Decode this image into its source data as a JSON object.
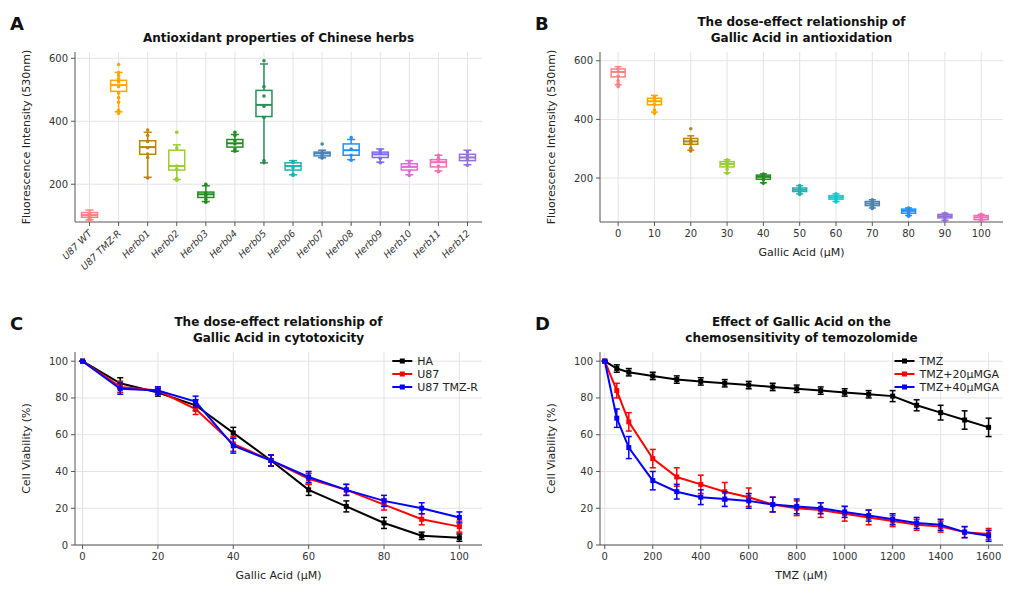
{
  "chart_data": [
    {
      "type": "box",
      "title": "Antioxidant properties of Chinese herbs",
      "annotations": [
        "A"
      ],
      "ylabel": "Fluorescence Intensity (530nm)",
      "categories": [
        "U87 WT",
        "U87 TMZ-R",
        "Herb01",
        "Herb02",
        "Herb03",
        "Herb04",
        "Herb05",
        "Herb06",
        "Herb07",
        "Herb08",
        "Herb09",
        "Herb10",
        "Herb11",
        "Herb12"
      ],
      "colors": [
        "#FF8080",
        "#FFA500",
        "#B8860B",
        "#9ACD32",
        "#228B22",
        "#228B22",
        "#2E8B57",
        "#20B2AA",
        "#4682B4",
        "#1E90FF",
        "#7B68EE",
        "#DA70D6",
        "#FF69B4",
        "#9370DB"
      ],
      "boxes": [
        {
          "q1": 95,
          "med": 102,
          "q3": 110,
          "whislo": 87,
          "whishi": 118,
          "fliers": [
            85,
            87,
            88,
            90,
            92,
            95,
            98,
            100,
            102,
            105,
            108
          ]
        },
        {
          "q1": 495,
          "med": 515,
          "q3": 530,
          "whislo": 430,
          "whishi": 555,
          "fliers": [
            425,
            435,
            460,
            475,
            490,
            510,
            525,
            535,
            545,
            555,
            580
          ]
        },
        {
          "q1": 295,
          "med": 318,
          "q3": 338,
          "whislo": 222,
          "whishi": 365,
          "fliers": [
            220,
            285,
            296,
            316,
            336,
            355,
            372
          ]
        },
        {
          "q1": 245,
          "med": 258,
          "q3": 308,
          "whislo": 215,
          "whishi": 325,
          "fliers": [
            213,
            218,
            248,
            258,
            315,
            365
          ]
        },
        {
          "q1": 158,
          "med": 168,
          "q3": 175,
          "whislo": 145,
          "whishi": 195,
          "fliers": [
            143,
            152,
            163,
            172,
            200
          ]
        },
        {
          "q1": 318,
          "med": 330,
          "q3": 342,
          "whislo": 305,
          "whishi": 358,
          "fliers": [
            305,
            312,
            328,
            338,
            355,
            365
          ]
        },
        {
          "q1": 415,
          "med": 452,
          "q3": 498,
          "whislo": 268,
          "whishi": 582,
          "fliers": [
            268,
            275,
            412,
            448,
            480,
            510,
            592
          ]
        },
        {
          "q1": 245,
          "med": 258,
          "q3": 268,
          "whislo": 230,
          "whishi": 275,
          "fliers": [
            228,
            232,
            252,
            268,
            272
          ]
        },
        {
          "q1": 290,
          "med": 298,
          "q3": 302,
          "whislo": 284,
          "whishi": 308,
          "fliers": [
            283,
            292,
            300,
            328
          ]
        },
        {
          "q1": 292,
          "med": 308,
          "q3": 328,
          "whislo": 278,
          "whishi": 342,
          "fliers": [
            276,
            292,
            312,
            348
          ]
        },
        {
          "q1": 285,
          "med": 295,
          "q3": 302,
          "whislo": 270,
          "whishi": 312,
          "fliers": [
            268,
            282,
            298,
            308
          ]
        },
        {
          "q1": 245,
          "med": 255,
          "q3": 265,
          "whislo": 230,
          "whishi": 275,
          "fliers": [
            228,
            242,
            258,
            272
          ]
        },
        {
          "q1": 255,
          "med": 270,
          "q3": 278,
          "whislo": 242,
          "whishi": 292,
          "fliers": [
            240,
            258,
            272,
            282,
            292
          ]
        },
        {
          "q1": 275,
          "med": 285,
          "q3": 295,
          "whislo": 262,
          "whishi": 308,
          "fliers": [
            260,
            278,
            290,
            302
          ]
        }
      ],
      "ylim": [
        80,
        620
      ],
      "yticks": [
        200,
        400,
        600
      ],
      "grid": true
    },
    {
      "type": "box",
      "title": "The dose-effect relationship of\nGallic Acid in antioxidation",
      "annotations": [
        "B"
      ],
      "ylabel": "Fluorescence Intensity (530nm)",
      "xlabel": "Gallic Acid (μM)",
      "x": [
        0,
        10,
        20,
        30,
        40,
        50,
        60,
        70,
        80,
        90,
        100
      ],
      "colors": [
        "#FF8080",
        "#FFA500",
        "#B8860B",
        "#9ACD32",
        "#228B22",
        "#20B2AA",
        "#00CED1",
        "#4682B4",
        "#1E90FF",
        "#9370DB",
        "#FF69B4"
      ],
      "boxes": [
        {
          "q1": 545,
          "med": 562,
          "q3": 572,
          "whislo": 518,
          "whishi": 580,
          "fliers": [
            512,
            522,
            532,
            548,
            562,
            572
          ]
        },
        {
          "q1": 450,
          "med": 462,
          "q3": 472,
          "whislo": 425,
          "whishi": 482,
          "fliers": [
            420,
            432,
            452,
            468,
            478
          ]
        },
        {
          "q1": 315,
          "med": 325,
          "q3": 335,
          "whislo": 295,
          "whishi": 344,
          "fliers": [
            292,
            302,
            318,
            328,
            368
          ]
        },
        {
          "q1": 238,
          "med": 248,
          "q3": 256,
          "whislo": 218,
          "whishi": 262,
          "fliers": [
            216,
            230,
            242,
            254,
            262
          ]
        },
        {
          "q1": 196,
          "med": 204,
          "q3": 210,
          "whislo": 184,
          "whishi": 214,
          "fliers": [
            182,
            194,
            202,
            208,
            214
          ]
        },
        {
          "q1": 154,
          "med": 160,
          "q3": 166,
          "whislo": 146,
          "whishi": 174,
          "fliers": [
            144,
            150,
            158,
            166,
            174
          ]
        },
        {
          "q1": 128,
          "med": 134,
          "q3": 140,
          "whislo": 120,
          "whishi": 146,
          "fliers": [
            118,
            126,
            132,
            138,
            146
          ]
        },
        {
          "q1": 106,
          "med": 113,
          "q3": 120,
          "whislo": 98,
          "whishi": 126,
          "fliers": [
            96,
            103,
            110,
            118,
            126
          ]
        },
        {
          "q1": 80,
          "med": 88,
          "q3": 94,
          "whislo": 72,
          "whishi": 98,
          "fliers": [
            70,
            76,
            84,
            90,
            98
          ]
        },
        {
          "q1": 64,
          "med": 70,
          "q3": 76,
          "whislo": 56,
          "whishi": 80,
          "fliers": [
            54,
            62,
            68,
            74,
            80
          ]
        },
        {
          "q1": 58,
          "med": 66,
          "q3": 72,
          "whislo": 52,
          "whishi": 76,
          "fliers": [
            50,
            56,
            64,
            70,
            76
          ]
        }
      ],
      "xlim": [
        -5,
        106
      ],
      "xticks": [
        0,
        10,
        20,
        30,
        40,
        50,
        60,
        70,
        80,
        90,
        100
      ],
      "ylim": [
        50,
        630
      ],
      "yticks": [
        200,
        400,
        600
      ],
      "grid": true
    },
    {
      "type": "line",
      "title": "The dose-effect relationship of\nGallic Acid in cytotoxicity",
      "annotations": [
        "C"
      ],
      "ylabel": "Cell Viability (%)",
      "xlabel": "Gallic Acid (μM)",
      "x": [
        0,
        10,
        20,
        30,
        40,
        50,
        60,
        70,
        80,
        90,
        100
      ],
      "series": [
        {
          "name": "HA",
          "color": "#000000",
          "values": [
            100,
            88,
            83,
            76,
            61,
            46,
            30,
            21,
            12,
            5,
            4
          ],
          "errors": [
            0,
            3,
            2,
            3,
            3,
            3,
            3,
            3,
            3,
            2,
            2
          ]
        },
        {
          "name": "U87",
          "color": "#FF0000",
          "values": [
            100,
            86,
            84,
            74,
            55,
            46,
            36,
            30,
            22,
            14,
            10
          ],
          "errors": [
            0,
            3,
            2,
            3,
            4,
            3,
            3,
            3,
            3,
            3,
            3
          ]
        },
        {
          "name": "U87 TMZ-R",
          "color": "#0000FF",
          "values": [
            100,
            85,
            84,
            78,
            54,
            46,
            37,
            30,
            24,
            20,
            15
          ],
          "errors": [
            0,
            3,
            2,
            3,
            4,
            3,
            3,
            3,
            3,
            3,
            3
          ]
        }
      ],
      "marker": "square",
      "xlim": [
        -2,
        106
      ],
      "xticks": [
        0,
        20,
        40,
        60,
        80,
        100
      ],
      "ylim": [
        0,
        105
      ],
      "yticks": [
        0,
        20,
        40,
        60,
        80,
        100
      ],
      "grid": true,
      "legend": "upper right"
    },
    {
      "type": "line",
      "title": "Effect of Gallic Acid on the\nchemosensitivity of temozolomide",
      "annotations": [
        "D"
      ],
      "ylabel": "Cell Viability (%)",
      "xlabel": "TMZ (μM)",
      "x": [
        0,
        50,
        100,
        200,
        300,
        400,
        500,
        600,
        700,
        800,
        900,
        1000,
        1100,
        1200,
        1300,
        1400,
        1500,
        1600
      ],
      "series": [
        {
          "name": "TMZ",
          "color": "#000000",
          "values": [
            100,
            96,
            94,
            92,
            90,
            89,
            88,
            87,
            86,
            85,
            84,
            83,
            82,
            81,
            76,
            72,
            68,
            64
          ],
          "errors": [
            0,
            2,
            2,
            2,
            2,
            2,
            2,
            2,
            2,
            2,
            2,
            2,
            2,
            3,
            3,
            4,
            5,
            5
          ]
        },
        {
          "name": "TMZ+20μMGA",
          "color": "#FF0000",
          "values": [
            100,
            84,
            67,
            47,
            37,
            33,
            29,
            26,
            22,
            20,
            19,
            17,
            15,
            13,
            11,
            10,
            7,
            6
          ],
          "errors": [
            0,
            4,
            5,
            5,
            5,
            5,
            5,
            5,
            4,
            4,
            4,
            4,
            4,
            3,
            3,
            3,
            3,
            3
          ]
        },
        {
          "name": "TMZ+40μMGA",
          "color": "#0000FF",
          "values": [
            100,
            69,
            53,
            35,
            29,
            26,
            25,
            24,
            22,
            21,
            20,
            18,
            16,
            14,
            12,
            11,
            7,
            5
          ],
          "errors": [
            0,
            5,
            6,
            5,
            4,
            4,
            4,
            4,
            4,
            4,
            3,
            3,
            3,
            3,
            3,
            3,
            3,
            3
          ]
        }
      ],
      "marker": "square",
      "xlim": [
        -20,
        1660
      ],
      "xticks": [
        0,
        200,
        400,
        600,
        800,
        1000,
        1200,
        1400,
        1600
      ],
      "ylim": [
        0,
        105
      ],
      "yticks": [
        0,
        20,
        40,
        60,
        80,
        100
      ],
      "grid": true,
      "legend": "upper right"
    }
  ]
}
